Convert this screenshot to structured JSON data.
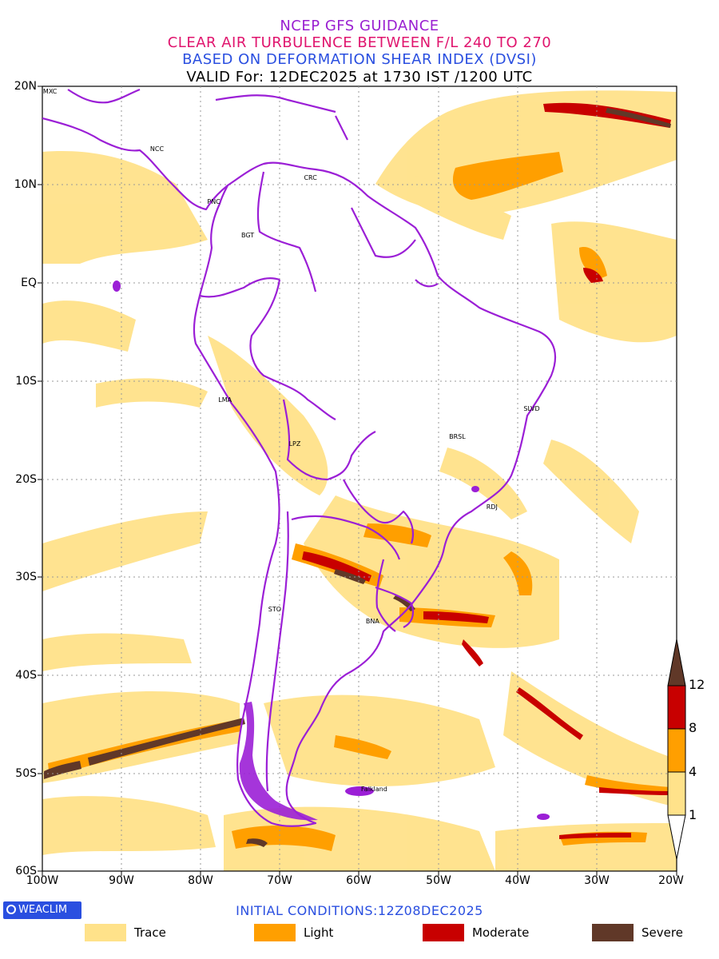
{
  "titles": {
    "line1": "NCEP GFS GUIDANCE",
    "line2": "CLEAR AIR TURBULENCE BETWEEN F/L 240 TO 270",
    "line3": "BASED ON DEFORMATION SHEAR INDEX (DVSI)",
    "line4": "VALID For: 12DEC2025 at 1730 IST /1200 UTC"
  },
  "axes": {
    "lat_labels": [
      "20N",
      "10N",
      "EQ",
      "10S",
      "20S",
      "30S",
      "40S",
      "50S",
      "60S"
    ],
    "lon_labels": [
      "100W",
      "90W",
      "80W",
      "70W",
      "60W",
      "50W",
      "40W",
      "30W",
      "20W"
    ]
  },
  "cities": [
    {
      "name": "MXC",
      "lon": -99.1,
      "lat": 19.4
    },
    {
      "name": "NCC",
      "lon": -85.6,
      "lat": 13.6
    },
    {
      "name": "PNC",
      "lon": -78.4,
      "lat": 8.2
    },
    {
      "name": "CRC",
      "lon": -66.2,
      "lat": 10.6
    },
    {
      "name": "BGT",
      "lon": -74.1,
      "lat": 4.8
    },
    {
      "name": "LMA",
      "lon": -77.0,
      "lat": -12.0
    },
    {
      "name": "LPZ",
      "lon": -68.1,
      "lat": -16.5
    },
    {
      "name": "BRSL",
      "lon": -47.9,
      "lat": -15.8
    },
    {
      "name": "SLVD",
      "lon": -38.5,
      "lat": -12.9
    },
    {
      "name": "RDJ",
      "lon": -43.2,
      "lat": -22.9
    },
    {
      "name": "STO",
      "lon": -70.7,
      "lat": -33.4
    },
    {
      "name": "BNA",
      "lon": -58.4,
      "lat": -34.6
    },
    {
      "name": "Falkland",
      "lon": -59.0,
      "lat": -51.7
    }
  ],
  "color_scale": {
    "labels": [
      "12",
      "8",
      "4",
      "1"
    ]
  },
  "colors": {
    "trace": "#ffe28a",
    "light": "#ff9f00",
    "moderate": "#c80000",
    "severe": "#603828",
    "borders": "#9b1fd6"
  },
  "logo": {
    "text": "WEACLIM"
  },
  "initial_conditions": "INITIAL CONDITIONS:12Z08DEC2025",
  "legend": [
    {
      "label": "Trace",
      "color": "#ffe28a"
    },
    {
      "label": "Light",
      "color": "#ff9f00"
    },
    {
      "label": "Moderate",
      "color": "#c80000"
    },
    {
      "label": "Severe",
      "color": "#603828"
    }
  ]
}
